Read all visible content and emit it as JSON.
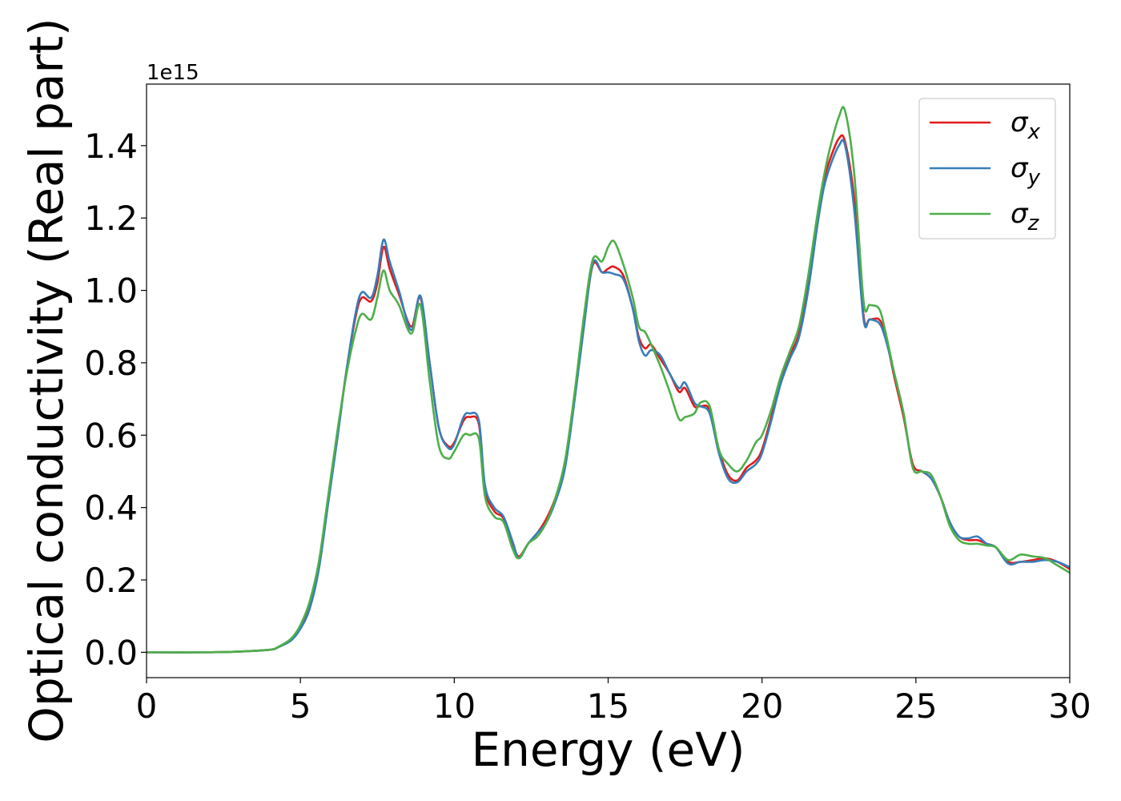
{
  "chart_data": {
    "type": "line",
    "xlabel": "Energy (eV)",
    "ylabel": "Optical conductivity (Real part)",
    "y_offset_label": "1e15",
    "xlim": [
      0,
      30
    ],
    "ylim": [
      -0.07,
      1.57
    ],
    "x_ticks": [
      0,
      5,
      10,
      15,
      20,
      25,
      30
    ],
    "x_tick_labels": [
      "0",
      "5",
      "10",
      "15",
      "20",
      "25",
      "30"
    ],
    "y_ticks": [
      0.0,
      0.2,
      0.4,
      0.6,
      0.8,
      1.0,
      1.2,
      1.4
    ],
    "y_tick_labels": [
      "0.0",
      "0.2",
      "0.4",
      "0.6",
      "0.8",
      "1.0",
      "1.2",
      "1.4"
    ],
    "grid": false,
    "legend_position": "top-right",
    "series": [
      {
        "name": "σx",
        "legend_base": "σ",
        "legend_sub": "x",
        "color": "#e41a1c",
        "x": [
          0,
          2,
          3,
          4,
          4.3,
          4.7,
          5,
          5.3,
          5.6,
          5.9,
          6.2,
          6.5,
          6.8,
          7.0,
          7.3,
          7.5,
          7.7,
          7.9,
          8.2,
          8.6,
          8.9,
          9.2,
          9.5,
          9.8,
          10.0,
          10.3,
          10.5,
          10.8,
          11.0,
          11.3,
          11.6,
          11.9,
          12.1,
          12.4,
          12.7,
          13.0,
          13.3,
          13.6,
          13.9,
          14.2,
          14.5,
          14.8,
          15.0,
          15.2,
          15.5,
          15.8,
          16.0,
          16.2,
          16.4,
          16.7,
          17.0,
          17.3,
          17.5,
          17.8,
          18.0,
          18.3,
          18.6,
          18.9,
          19.2,
          19.5,
          19.8,
          20.0,
          20.3,
          20.6,
          20.9,
          21.2,
          21.5,
          21.8,
          22.0,
          22.2,
          22.5,
          22.7,
          23.0,
          23.3,
          23.5,
          23.8,
          24.0,
          24.3,
          24.6,
          24.9,
          25.2,
          25.5,
          25.8,
          26.1,
          26.4,
          26.7,
          27.0,
          27.3,
          27.6,
          28.0,
          28.4,
          28.8,
          29.2,
          29.6,
          30
        ],
        "values": [
          0,
          0,
          0.002,
          0.007,
          0.015,
          0.035,
          0.07,
          0.13,
          0.24,
          0.42,
          0.6,
          0.78,
          0.93,
          0.98,
          0.97,
          1.02,
          1.12,
          1.06,
          0.99,
          0.9,
          0.98,
          0.8,
          0.62,
          0.57,
          0.58,
          0.64,
          0.65,
          0.63,
          0.45,
          0.39,
          0.37,
          0.3,
          0.265,
          0.3,
          0.33,
          0.37,
          0.43,
          0.52,
          0.7,
          0.9,
          1.07,
          1.05,
          1.06,
          1.065,
          1.04,
          0.95,
          0.87,
          0.84,
          0.85,
          0.81,
          0.77,
          0.72,
          0.73,
          0.68,
          0.68,
          0.67,
          0.56,
          0.49,
          0.475,
          0.51,
          0.53,
          0.56,
          0.65,
          0.75,
          0.82,
          0.88,
          1.02,
          1.2,
          1.3,
          1.36,
          1.42,
          1.41,
          1.25,
          0.93,
          0.92,
          0.92,
          0.88,
          0.76,
          0.65,
          0.52,
          0.5,
          0.48,
          0.43,
          0.36,
          0.32,
          0.31,
          0.31,
          0.3,
          0.29,
          0.25,
          0.25,
          0.255,
          0.26,
          0.25,
          0.23
        ]
      },
      {
        "name": "σy",
        "legend_base": "σ",
        "legend_sub": "y",
        "color": "#377eb8",
        "x": [
          0,
          2,
          3,
          4,
          4.3,
          4.7,
          5,
          5.3,
          5.6,
          5.9,
          6.2,
          6.5,
          6.8,
          7.0,
          7.3,
          7.5,
          7.7,
          7.9,
          8.2,
          8.6,
          8.9,
          9.2,
          9.5,
          9.8,
          10.0,
          10.3,
          10.5,
          10.8,
          11.0,
          11.3,
          11.6,
          11.9,
          12.1,
          12.4,
          12.7,
          13.0,
          13.3,
          13.6,
          13.9,
          14.2,
          14.5,
          14.8,
          15.0,
          15.2,
          15.5,
          15.8,
          16.0,
          16.2,
          16.4,
          16.7,
          17.0,
          17.3,
          17.5,
          17.8,
          18.0,
          18.3,
          18.6,
          18.9,
          19.2,
          19.5,
          19.8,
          20.0,
          20.3,
          20.6,
          20.9,
          21.2,
          21.5,
          21.8,
          22.0,
          22.2,
          22.5,
          22.7,
          23.0,
          23.3,
          23.5,
          23.8,
          24.0,
          24.3,
          24.6,
          24.9,
          25.2,
          25.5,
          25.8,
          26.1,
          26.4,
          26.7,
          27.0,
          27.3,
          27.6,
          28.0,
          28.4,
          28.8,
          29.2,
          29.6,
          30
        ],
        "values": [
          0,
          0,
          0.002,
          0.007,
          0.015,
          0.033,
          0.065,
          0.12,
          0.23,
          0.41,
          0.59,
          0.78,
          0.94,
          0.995,
          0.98,
          1.04,
          1.14,
          1.08,
          1.0,
          0.89,
          0.985,
          0.8,
          0.62,
          0.565,
          0.575,
          0.65,
          0.66,
          0.64,
          0.46,
          0.4,
          0.375,
          0.305,
          0.26,
          0.3,
          0.33,
          0.36,
          0.42,
          0.51,
          0.69,
          0.89,
          1.075,
          1.05,
          1.05,
          1.045,
          1.03,
          0.95,
          0.86,
          0.82,
          0.835,
          0.82,
          0.77,
          0.73,
          0.745,
          0.69,
          0.68,
          0.66,
          0.55,
          0.48,
          0.47,
          0.5,
          0.52,
          0.55,
          0.64,
          0.74,
          0.81,
          0.87,
          1.0,
          1.18,
          1.28,
          1.34,
          1.4,
          1.4,
          1.22,
          0.92,
          0.92,
          0.91,
          0.87,
          0.77,
          0.66,
          0.51,
          0.5,
          0.48,
          0.43,
          0.36,
          0.32,
          0.315,
          0.32,
          0.3,
          0.29,
          0.245,
          0.25,
          0.25,
          0.255,
          0.25,
          0.235
        ]
      },
      {
        "name": "σz",
        "legend_base": "σ",
        "legend_sub": "z",
        "color": "#4daf4a",
        "x": [
          0,
          2,
          3,
          4,
          4.3,
          4.7,
          5,
          5.3,
          5.6,
          5.9,
          6.2,
          6.5,
          6.8,
          7.0,
          7.3,
          7.5,
          7.7,
          7.9,
          8.2,
          8.6,
          8.9,
          9.2,
          9.5,
          9.8,
          10.0,
          10.3,
          10.5,
          10.8,
          11.0,
          11.3,
          11.6,
          11.9,
          12.1,
          12.4,
          12.7,
          13.0,
          13.3,
          13.6,
          13.9,
          14.2,
          14.5,
          14.8,
          15.0,
          15.2,
          15.5,
          15.8,
          16.0,
          16.2,
          16.4,
          16.7,
          17.0,
          17.3,
          17.5,
          17.8,
          18.0,
          18.3,
          18.6,
          18.9,
          19.2,
          19.5,
          19.8,
          20.0,
          20.3,
          20.6,
          20.9,
          21.2,
          21.5,
          21.8,
          22.0,
          22.2,
          22.5,
          22.7,
          23.0,
          23.3,
          23.5,
          23.8,
          24.0,
          24.3,
          24.6,
          24.9,
          25.2,
          25.5,
          25.8,
          26.1,
          26.4,
          26.7,
          27.0,
          27.3,
          27.6,
          28.0,
          28.4,
          28.8,
          29.2,
          29.6,
          30
        ],
        "values": [
          0,
          0,
          0.002,
          0.007,
          0.016,
          0.038,
          0.075,
          0.14,
          0.25,
          0.43,
          0.61,
          0.77,
          0.89,
          0.935,
          0.92,
          0.98,
          1.055,
          1.0,
          0.96,
          0.88,
          0.96,
          0.75,
          0.57,
          0.535,
          0.555,
          0.6,
          0.6,
          0.59,
          0.43,
          0.375,
          0.36,
          0.285,
          0.26,
          0.3,
          0.32,
          0.36,
          0.43,
          0.53,
          0.71,
          0.92,
          1.085,
          1.08,
          1.12,
          1.135,
          1.07,
          0.98,
          0.9,
          0.885,
          0.85,
          0.79,
          0.72,
          0.645,
          0.65,
          0.66,
          0.69,
          0.68,
          0.56,
          0.52,
          0.5,
          0.53,
          0.58,
          0.6,
          0.67,
          0.76,
          0.83,
          0.9,
          1.04,
          1.21,
          1.31,
          1.39,
          1.48,
          1.495,
          1.32,
          0.97,
          0.96,
          0.95,
          0.89,
          0.77,
          0.66,
          0.51,
          0.5,
          0.49,
          0.43,
          0.35,
          0.31,
          0.3,
          0.3,
          0.295,
          0.29,
          0.255,
          0.27,
          0.265,
          0.26,
          0.24,
          0.22
        ]
      }
    ]
  }
}
